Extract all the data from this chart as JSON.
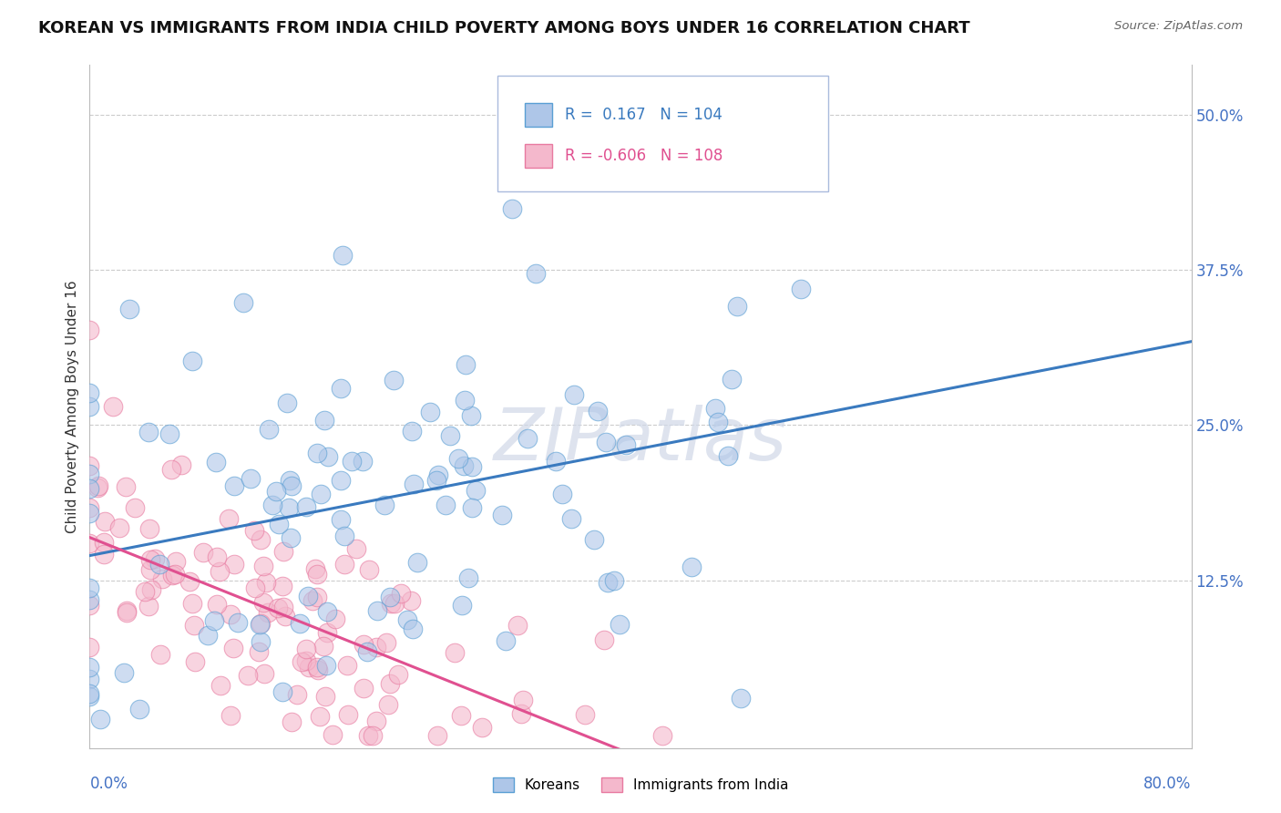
{
  "title": "KOREAN VS IMMIGRANTS FROM INDIA CHILD POVERTY AMONG BOYS UNDER 16 CORRELATION CHART",
  "source": "Source: ZipAtlas.com",
  "ylabel": "Child Poverty Among Boys Under 16",
  "yticks": [
    0.0,
    0.125,
    0.25,
    0.375,
    0.5
  ],
  "ytick_labels": [
    "",
    "12.5%",
    "25.0%",
    "37.5%",
    "50.0%"
  ],
  "xlim": [
    0.0,
    0.8
  ],
  "ylim": [
    -0.01,
    0.54
  ],
  "series": [
    {
      "name": "Koreans",
      "R": 0.167,
      "N": 104,
      "marker_color": "#aec6e8",
      "marker_edge_color": "#5a9fd4",
      "line_color": "#3a7abf"
    },
    {
      "name": "Immigrants from India",
      "R": -0.606,
      "N": 108,
      "marker_color": "#f4b8cc",
      "marker_edge_color": "#e87aa0",
      "line_color": "#e05090"
    }
  ],
  "background_color": "#ffffff",
  "grid_color": "#cccccc",
  "watermark_text": "ZIPatlas",
  "title_fontsize": 13,
  "axis_label_fontsize": 11,
  "tick_fontsize": 12,
  "legend_R_color": "#3a7abf",
  "legend_R2_color": "#e05090"
}
